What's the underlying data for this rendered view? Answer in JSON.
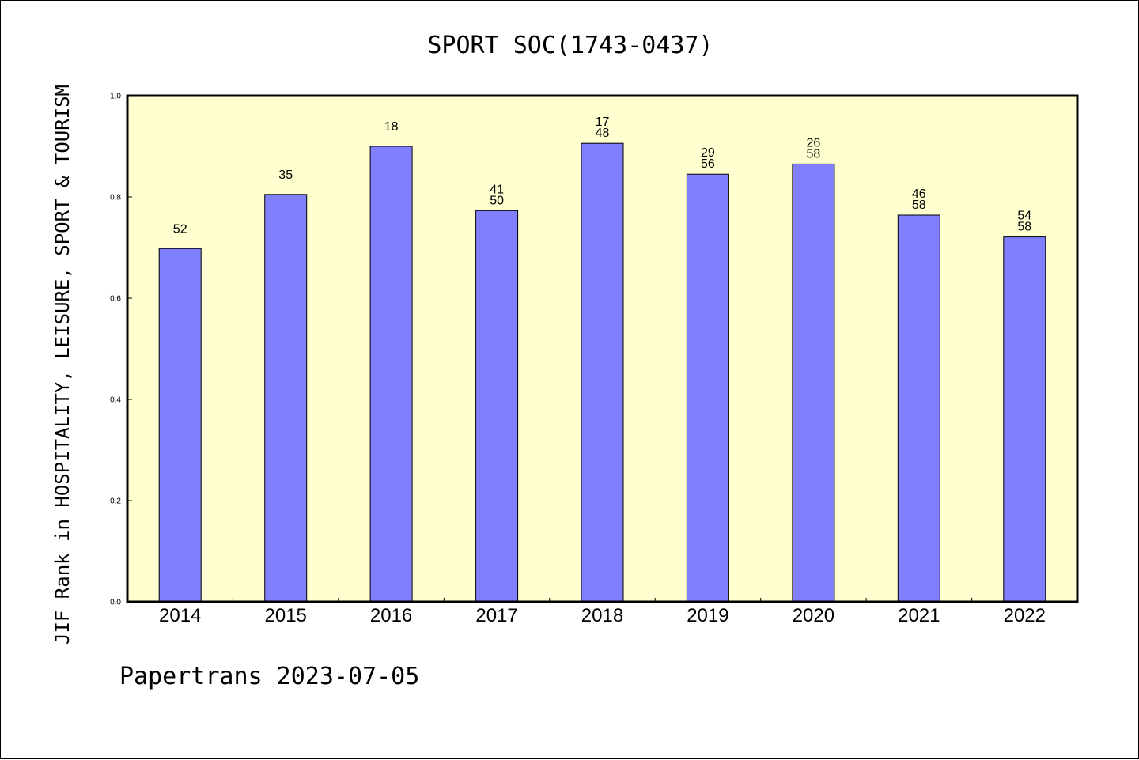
{
  "chart_data": {
    "type": "bar",
    "title": "SPORT SOC(1743-0437)",
    "xlabel": "",
    "ylabel": "JIF Rank in HOSPITALITY, LEISURE, SPORT & TOURISM",
    "categories": [
      "2014",
      "2015",
      "2016",
      "2017",
      "2018",
      "2019",
      "2020",
      "2021",
      "2022"
    ],
    "values": [
      0.698,
      0.805,
      0.9,
      0.773,
      0.906,
      0.845,
      0.865,
      0.764,
      0.721
    ],
    "bar_labels": [
      [
        "52"
      ],
      [
        "35"
      ],
      [
        "18"
      ],
      [
        "41",
        "50"
      ],
      [
        "17",
        "48"
      ],
      [
        "29",
        "56"
      ],
      [
        "26",
        "58"
      ],
      [
        "46",
        "58"
      ],
      [
        "54",
        "58"
      ]
    ],
    "ylim": [
      0,
      1.0
    ],
    "yticks": [
      "0.0",
      "0.2",
      "0.4",
      "0.6",
      "0.8",
      "1.0"
    ],
    "grid": false,
    "legend": "none",
    "colors": {
      "plot_background": "#ffffd0",
      "bar_fill": "#8080ff",
      "bar_stroke": "#000000",
      "axis": "#000000"
    }
  },
  "footer": "Papertrans 2023-07-05"
}
